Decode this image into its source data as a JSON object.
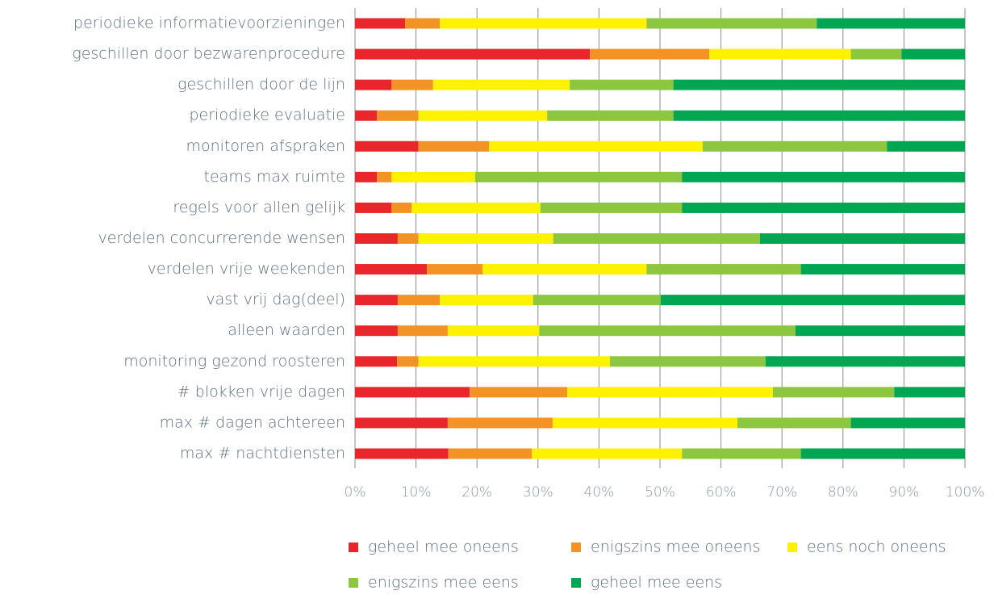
{
  "chart_data": {
    "type": "stacked-bar-horizontal",
    "categories": [
      "periodieke informatievoorzieningen",
      "geschillen door bezwarenprocedure",
      "geschillen door de lijn",
      "periodieke evaluatie",
      "monitoren afspraken",
      "teams max ruimte",
      "regels voor allen gelijk",
      "verdelen concurrerende wensen",
      "verdelen vrije weekenden",
      "vast vrij dag(deel)",
      "alleen waarden",
      "monitoring gezond roosteren",
      "# blokken vrije dagen",
      "max # dagen achtereen",
      "max # nachtdiensten"
    ],
    "series": [
      {
        "name": "geheel mee oneens",
        "color": "#e8262b",
        "values": [
          8.2,
          38.5,
          6.0,
          3.6,
          10.4,
          3.6,
          6.0,
          7.0,
          11.8,
          7.0,
          7.0,
          6.9,
          18.8,
          15.2,
          15.3
        ]
      },
      {
        "name": "enigszins mee oneens",
        "color": "#f39325",
        "values": [
          5.7,
          19.6,
          6.8,
          6.8,
          11.6,
          2.4,
          3.3,
          3.4,
          9.1,
          6.9,
          8.2,
          3.5,
          16.0,
          17.2,
          13.7
        ]
      },
      {
        "name": "eens noch oneens",
        "color": "#fff200",
        "values": [
          33.9,
          23.2,
          22.4,
          21.1,
          35.0,
          13.7,
          21.1,
          22.1,
          26.9,
          15.3,
          15.0,
          31.4,
          33.7,
          30.3,
          24.6
        ]
      },
      {
        "name": "enigszins mee eens",
        "color": "#8dc63f",
        "values": [
          27.9,
          8.3,
          17.0,
          20.7,
          30.2,
          33.9,
          23.2,
          33.9,
          25.3,
          20.9,
          42.0,
          25.5,
          19.9,
          18.6,
          19.5
        ]
      },
      {
        "name": "geheel mee eens",
        "color": "#00a651",
        "values": [
          24.3,
          10.4,
          47.8,
          47.8,
          12.8,
          46.4,
          46.4,
          33.6,
          26.9,
          49.9,
          27.8,
          32.7,
          11.6,
          18.7,
          26.9
        ]
      }
    ],
    "xlim": [
      0,
      100
    ],
    "xticks": [
      {
        "value": 0,
        "label": "0%"
      },
      {
        "value": 10,
        "label": "10%"
      },
      {
        "value": 20,
        "label": "20%"
      },
      {
        "value": 30,
        "label": "30%"
      },
      {
        "value": 40,
        "label": "40%"
      },
      {
        "value": 50,
        "label": "50%"
      },
      {
        "value": 60,
        "label": "60%"
      },
      {
        "value": 70,
        "label": "70%"
      },
      {
        "value": 80,
        "label": "80%"
      },
      {
        "value": 90,
        "label": "90%"
      },
      {
        "value": 100,
        "label": "100%"
      }
    ],
    "grid": true
  }
}
